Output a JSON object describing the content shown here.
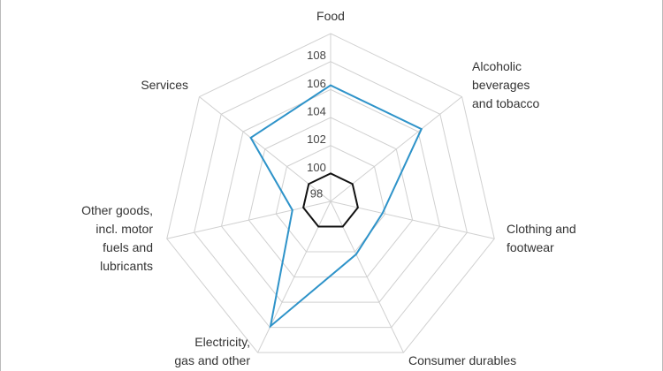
{
  "chart_data": {
    "type": "radar",
    "categories": [
      "Food",
      "Alcoholic\nbeverages\nand tobacco",
      "Clothing and\nfootwear",
      "Consumer durables",
      "Electricity,\ngas and other",
      "Other goods,\nincl. motor\nfuels and\nlubricants",
      "Services"
    ],
    "series": [
      {
        "color": "#2e93c9",
        "values": [
          106.3,
          106.3,
          101.8,
          102.2,
          107.9,
          100.8,
          105.3
        ]
      },
      {
        "color": "#111111",
        "values": [
          100,
          100,
          100,
          100,
          100,
          100,
          100
        ]
      }
    ],
    "ylim": [
      98,
      110
    ],
    "yticks": [
      98,
      100,
      102,
      104,
      106,
      108
    ],
    "grid": true
  }
}
